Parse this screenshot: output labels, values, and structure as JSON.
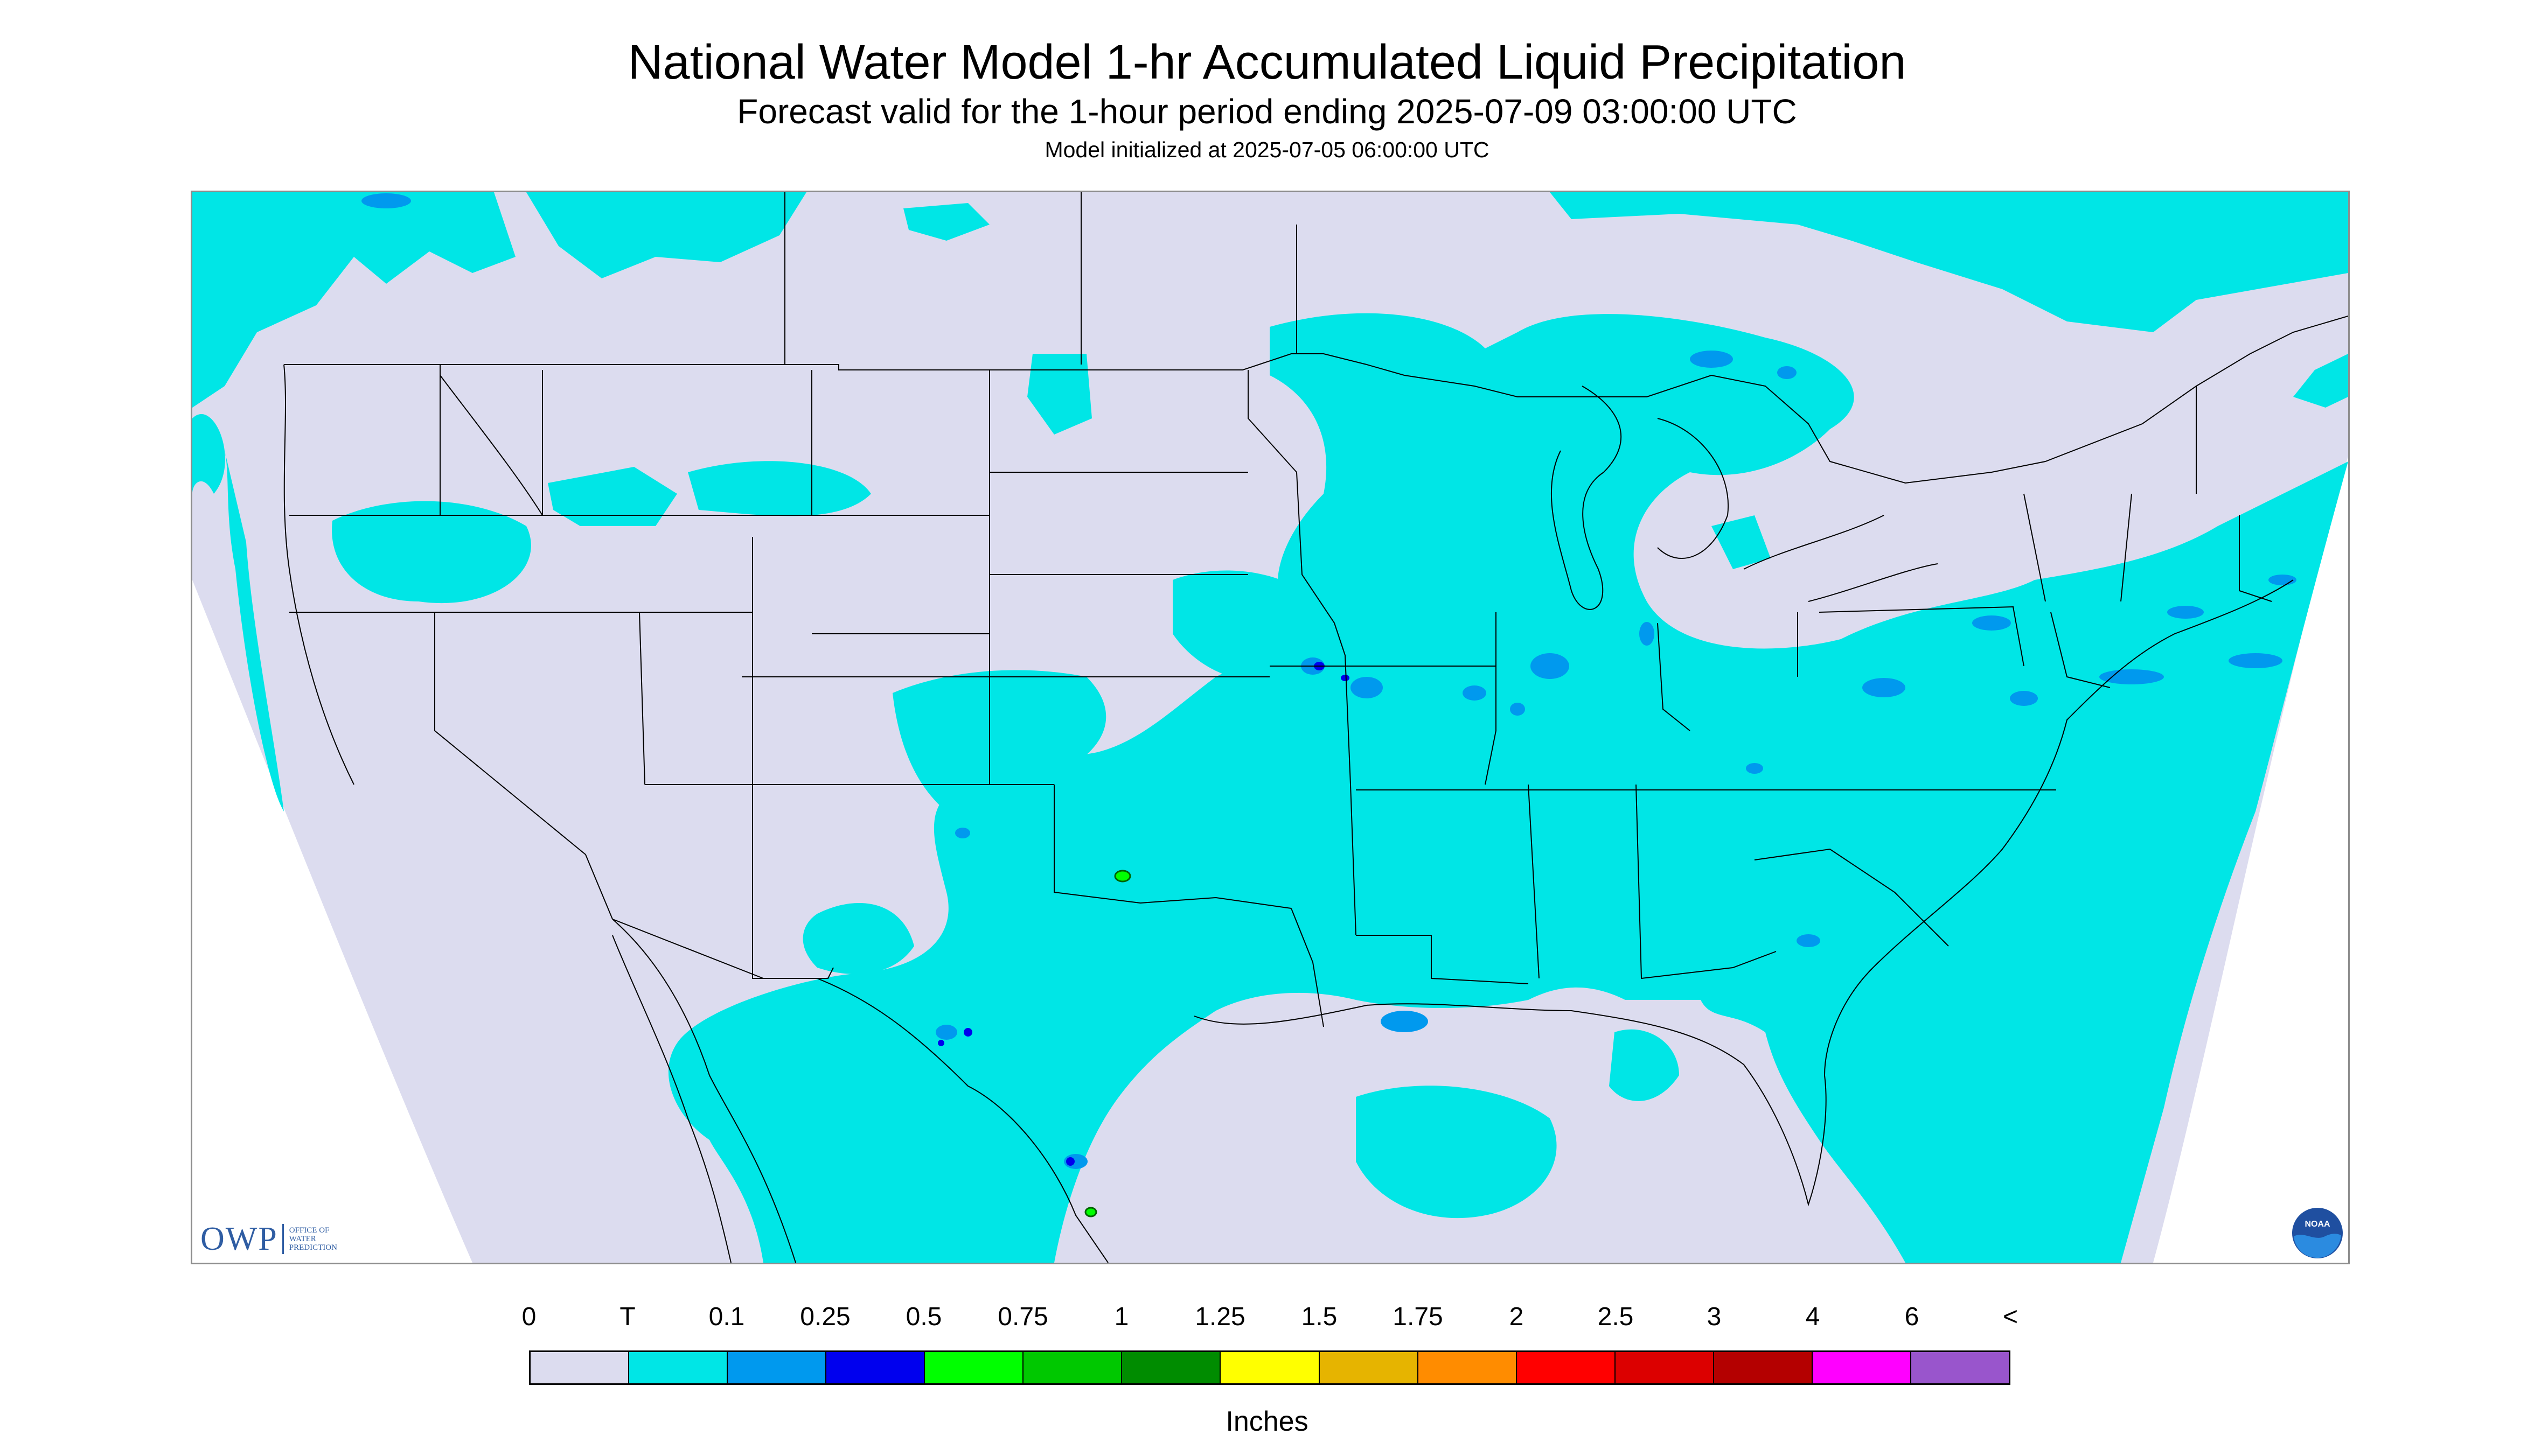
{
  "header": {
    "title": "National Water Model 1-hr Accumulated Liquid Precipitation",
    "subtitle": "Forecast valid for the 1-hour period ending 2025-07-09 03:00:00 UTC",
    "init": "Model initialized at 2025-07-05 06:00:00 UTC"
  },
  "logos": {
    "owp_letters": "OWP",
    "owp_line1": "OFFICE OF",
    "owp_line2": "WATER",
    "owp_line3": "PREDICTION",
    "noaa": "NOAA"
  },
  "legend": {
    "labels": [
      "0",
      "T",
      "0.1",
      "0.25",
      "0.5",
      "0.75",
      "1",
      "1.25",
      "1.5",
      "1.75",
      "2",
      "2.5",
      "3",
      "4",
      "6",
      "<"
    ],
    "colors": [
      "#dcdcef",
      "#00e6e6",
      "#0099ee",
      "#0000ee",
      "#00ff00",
      "#00c800",
      "#008c00",
      "#ffff00",
      "#e6b400",
      "#ff8c00",
      "#ff0000",
      "#dc0000",
      "#b40000",
      "#ff00ff",
      "#9955cc"
    ],
    "units": "Inches"
  },
  "map_style": {
    "background": "#dcdcef",
    "outside": "#ffffff",
    "trace": "#00e6e6",
    "light_blue": "#0099ee",
    "blue": "#0000ee",
    "green": "#00ff00",
    "border": "#000000"
  }
}
